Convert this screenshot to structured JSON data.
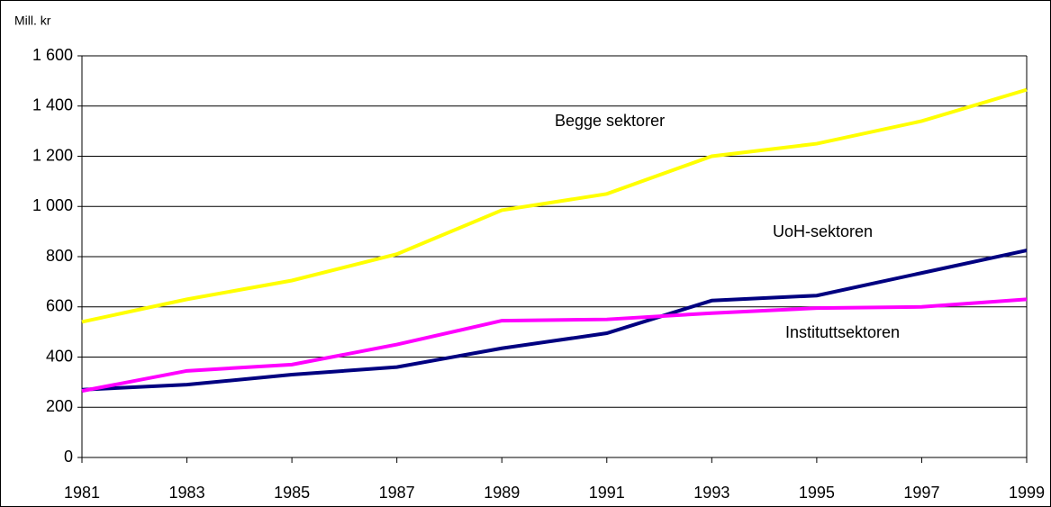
{
  "chart_data": {
    "type": "line",
    "y_label": "Mill. kr",
    "x": [
      1981,
      1983,
      1985,
      1987,
      1989,
      1991,
      1993,
      1995,
      1997,
      1999
    ],
    "series": [
      {
        "name": "Begge sektorer",
        "color": "#ffff00",
        "values": [
          540,
          630,
          705,
          810,
          985,
          1050,
          1200,
          1250,
          1340,
          1465
        ]
      },
      {
        "name": "UoH-sektoren",
        "color": "#000080",
        "values": [
          270,
          290,
          330,
          360,
          435,
          495,
          625,
          645,
          735,
          825
        ]
      },
      {
        "name": "Instituttsektoren",
        "color": "#ff00ff",
        "values": [
          265,
          345,
          370,
          450,
          545,
          550,
          575,
          595,
          600,
          630
        ]
      }
    ],
    "xlim": [
      1981,
      1999
    ],
    "xticks": [
      1981,
      1983,
      1985,
      1987,
      1989,
      1991,
      1993,
      1995,
      1997,
      1999
    ],
    "ylim": [
      0,
      1600
    ],
    "yticks": [
      0,
      200,
      400,
      600,
      800,
      {
        "value": 1000,
        "label": "1 000"
      },
      {
        "value": 1200,
        "label": "1 200"
      },
      {
        "value": 1400,
        "label": "1 400"
      },
      {
        "value": 1600,
        "label": "1 600"
      }
    ],
    "grid": true
  }
}
